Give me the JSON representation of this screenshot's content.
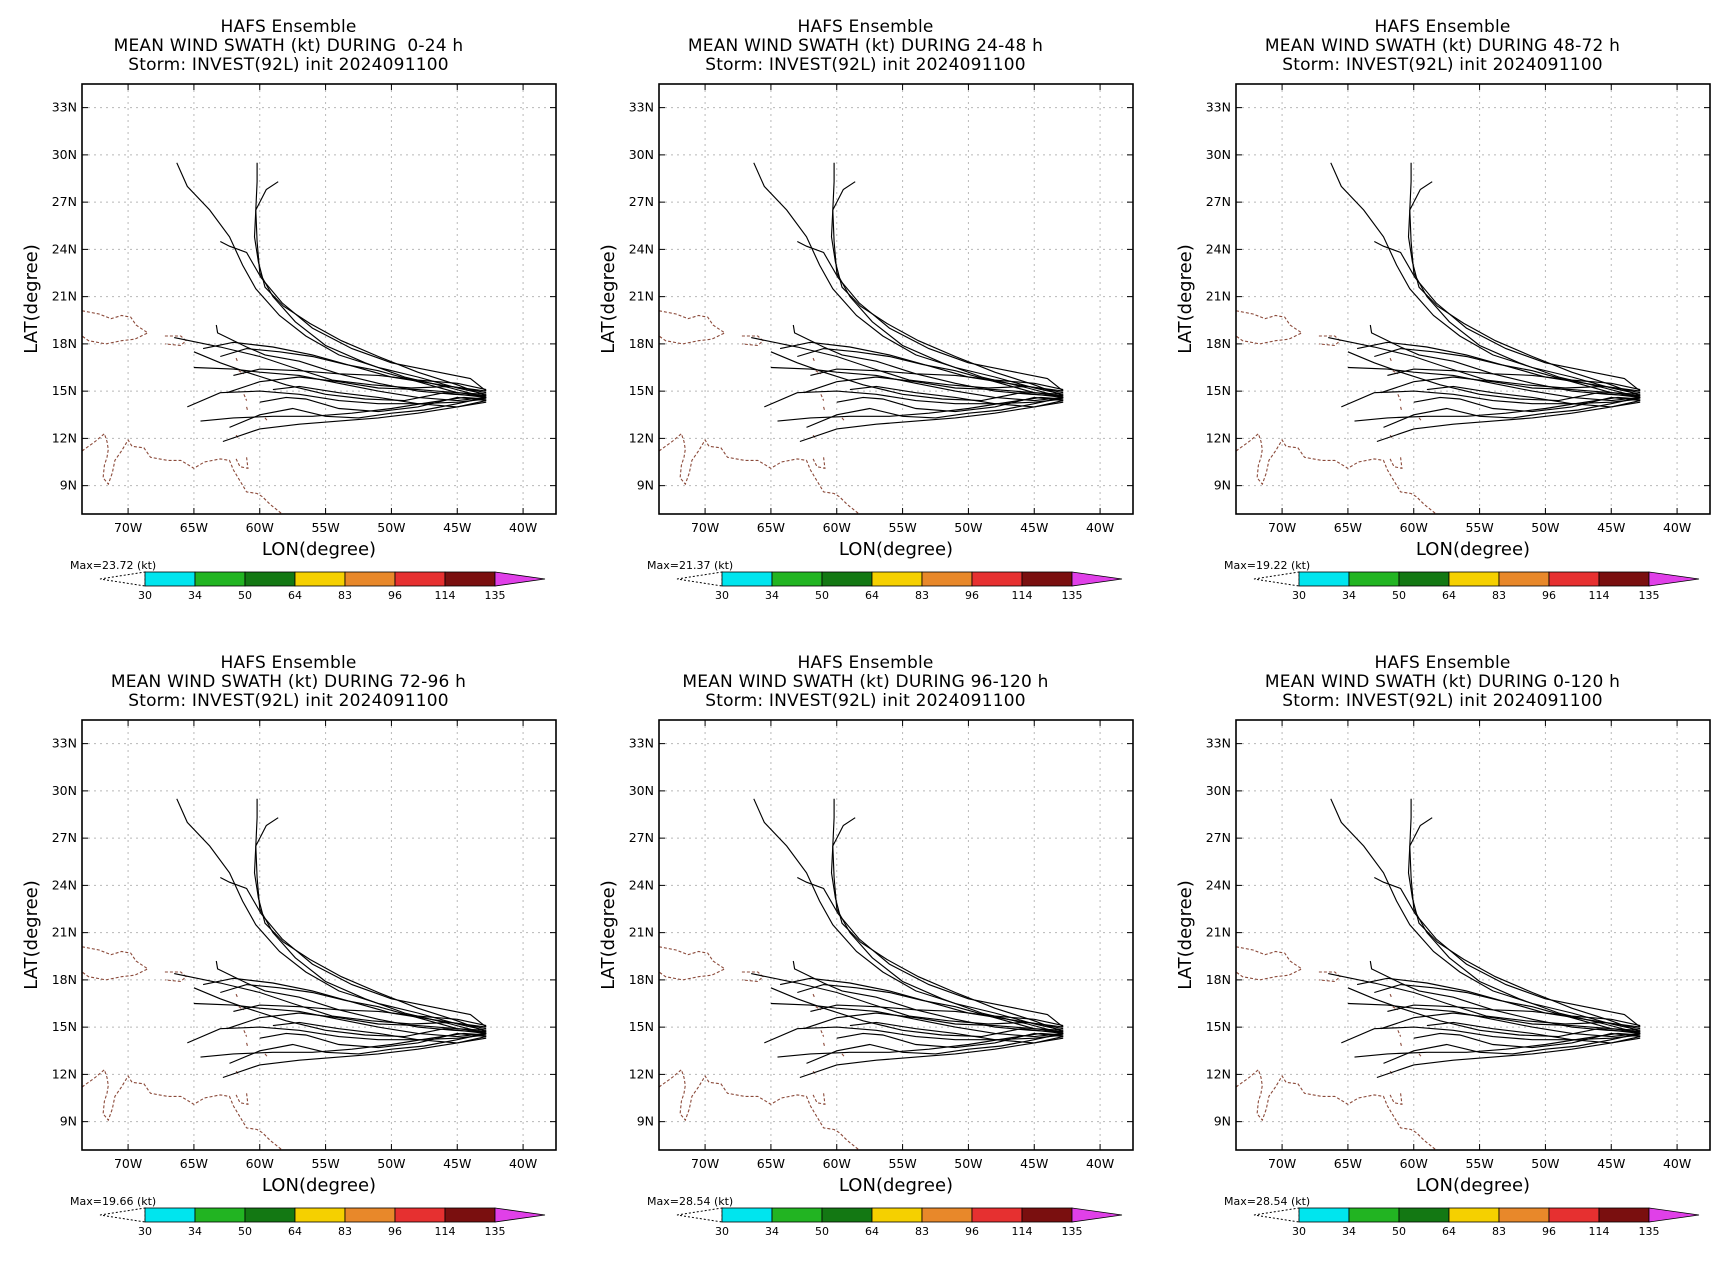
{
  "common": {
    "title_line1": "HAFS Ensemble",
    "title_line3": "Storm: INVEST(92L) init 2024091100",
    "xlabel": "LON(degree)",
    "ylabel": "LAT(degree)",
    "lat_ticks": [
      "33N",
      "30N",
      "27N",
      "24N",
      "21N",
      "18N",
      "15N",
      "12N",
      "9N"
    ],
    "lon_ticks": [
      "70W",
      "65W",
      "60W",
      "55W",
      "50W",
      "45W",
      "40W"
    ],
    "colorbar": {
      "thresholds": [
        "30",
        "34",
        "50",
        "64",
        "83",
        "96",
        "114",
        "135"
      ],
      "colors": [
        "#00e5ee",
        "#22b422",
        "#137813",
        "#f5d000",
        "#e8882a",
        "#e63030",
        "#7a0f0f",
        "#e040e8"
      ]
    }
  },
  "panels": [
    {
      "title_line2": "MEAN WIND SWATH (kt) DURING  0-24 h",
      "max_label": "Max=23.72 (kt)"
    },
    {
      "title_line2": "MEAN WIND SWATH (kt) DURING 24-48 h",
      "max_label": "Max=21.37 (kt)"
    },
    {
      "title_line2": "MEAN WIND SWATH (kt) DURING 48-72 h",
      "max_label": "Max=19.22 (kt)"
    },
    {
      "title_line2": "MEAN WIND SWATH (kt) DURING 72-96 h",
      "max_label": "Max=19.66 (kt)"
    },
    {
      "title_line2": "MEAN WIND SWATH (kt) DURING 96-120 h",
      "max_label": "Max=28.54 (kt)"
    },
    {
      "title_line2": "MEAN WIND SWATH (kt) DURING 0-120 h",
      "max_label": "Max=28.54 (kt)"
    }
  ],
  "map_data": {
    "lon_range": [
      -73.5,
      -37.5
    ],
    "lat_range": [
      7.2,
      34.5
    ],
    "tracks": [
      [
        [
          -42.8,
          14.8
        ],
        [
          -45,
          15.2
        ],
        [
          -48,
          15.9
        ],
        [
          -51,
          16.5
        ],
        [
          -54,
          17.3
        ],
        [
          -56.5,
          18.5
        ],
        [
          -58.5,
          19.8
        ],
        [
          -60.3,
          21.5
        ],
        [
          -61.3,
          23
        ],
        [
          -62.3,
          24.8
        ],
        [
          -63.8,
          26.5
        ],
        [
          -65.5,
          28
        ],
        [
          -66.3,
          29.5
        ]
      ],
      [
        [
          -42.8,
          14.6
        ],
        [
          -45.5,
          15.2
        ],
        [
          -49,
          15.9
        ],
        [
          -52,
          16.8
        ],
        [
          -55,
          17.9
        ],
        [
          -57.3,
          19.4
        ],
        [
          -59,
          21
        ],
        [
          -60,
          22.5
        ],
        [
          -60.2,
          24.5
        ],
        [
          -60.3,
          26.5
        ],
        [
          -60.2,
          28.3
        ],
        [
          -60.2,
          29.5
        ]
      ],
      [
        [
          -42.8,
          14.7
        ],
        [
          -45,
          15.4
        ],
        [
          -48,
          16.2
        ],
        [
          -51,
          17.2
        ],
        [
          -53.8,
          18.2
        ],
        [
          -56.2,
          19.3
        ],
        [
          -58.2,
          20.4
        ],
        [
          -59.6,
          21.6
        ],
        [
          -60.1,
          23.2
        ],
        [
          -60.4,
          24.8
        ],
        [
          -60.3,
          26.5
        ],
        [
          -59.5,
          27.8
        ],
        [
          -58.6,
          28.3
        ]
      ],
      [
        [
          -42.8,
          15.0
        ],
        [
          -44,
          15.8
        ],
        [
          -47,
          16.3
        ],
        [
          -50,
          16.8
        ],
        [
          -53,
          17.7
        ],
        [
          -56,
          19.0
        ],
        [
          -58.3,
          20.6
        ],
        [
          -59.9,
          22.2
        ],
        [
          -61,
          23.8
        ],
        [
          -62.3,
          24.2
        ],
        [
          -63,
          24.5
        ]
      ],
      [
        [
          -42.8,
          14.9
        ],
        [
          -44,
          15.1
        ],
        [
          -47,
          15.5
        ],
        [
          -50,
          15.9
        ],
        [
          -53,
          16.6
        ],
        [
          -56,
          17.3
        ],
        [
          -59,
          17.8
        ],
        [
          -62,
          18.1
        ],
        [
          -64.3,
          17.7
        ]
      ],
      [
        [
          -42.8,
          14.5
        ],
        [
          -45,
          14.3
        ],
        [
          -48,
          14.2
        ],
        [
          -51,
          14.2
        ],
        [
          -54,
          14.4
        ],
        [
          -57,
          14.8
        ],
        [
          -60,
          15.0
        ],
        [
          -63,
          14.9
        ],
        [
          -65.5,
          14.0
        ]
      ],
      [
        [
          -42.8,
          14.4
        ],
        [
          -45,
          14.0
        ],
        [
          -48,
          13.6
        ],
        [
          -51,
          13.3
        ],
        [
          -54,
          13.1
        ],
        [
          -57,
          12.9
        ],
        [
          -60,
          12.6
        ],
        [
          -62.8,
          11.8
        ]
      ],
      [
        [
          -42.8,
          14.6
        ],
        [
          -45,
          14.4
        ],
        [
          -48,
          14.6
        ],
        [
          -51,
          15.0
        ],
        [
          -54,
          15.5
        ],
        [
          -57,
          16.0
        ],
        [
          -60,
          16.2
        ],
        [
          -62,
          16.4
        ],
        [
          -65,
          16.5
        ]
      ],
      [
        [
          -42.8,
          14.7
        ],
        [
          -45.3,
          14.8
        ],
        [
          -48,
          15.0
        ],
        [
          -51,
          15.5
        ],
        [
          -54,
          16.1
        ],
        [
          -57,
          16.9
        ],
        [
          -59.6,
          17.3
        ],
        [
          -61,
          17.8
        ],
        [
          -63.2,
          18.7
        ],
        [
          -63.3,
          19.2
        ]
      ],
      [
        [
          -42.8,
          14.5
        ],
        [
          -44.5,
          14.6
        ],
        [
          -47,
          14.3
        ],
        [
          -50,
          13.9
        ],
        [
          -53,
          13.6
        ],
        [
          -56,
          13.4
        ],
        [
          -59,
          13.4
        ],
        [
          -62,
          13.3
        ],
        [
          -64.5,
          13.1
        ]
      ],
      [
        [
          -42.8,
          14.8
        ],
        [
          -45,
          14.9
        ],
        [
          -48,
          15.1
        ],
        [
          -51,
          15.2
        ],
        [
          -54,
          15.6
        ],
        [
          -57,
          15.9
        ],
        [
          -60,
          15.6
        ],
        [
          -62.5,
          14.9
        ]
      ],
      [
        [
          -42.8,
          14.4
        ],
        [
          -45,
          14.6
        ],
        [
          -48,
          14.0
        ],
        [
          -51,
          13.7
        ],
        [
          -54,
          13.9
        ],
        [
          -56.5,
          14.5
        ],
        [
          -58,
          14.6
        ],
        [
          -60,
          14.3
        ]
      ],
      [
        [
          -42.8,
          14.7
        ],
        [
          -45,
          14.9
        ],
        [
          -48,
          15.6
        ],
        [
          -51,
          16.3
        ],
        [
          -53.5,
          16.7
        ],
        [
          -56,
          17.2
        ],
        [
          -58.5,
          17.5
        ],
        [
          -61,
          17.7
        ],
        [
          -63,
          17.2
        ]
      ],
      [
        [
          -42.8,
          14.6
        ],
        [
          -45,
          14.2
        ],
        [
          -47.5,
          13.8
        ],
        [
          -50,
          13.6
        ],
        [
          -52.5,
          13.3
        ],
        [
          -55,
          13.4
        ],
        [
          -57.5,
          13.9
        ],
        [
          -60,
          13.5
        ],
        [
          -62.3,
          12.7
        ]
      ],
      [
        [
          -42.8,
          15.1
        ],
        [
          -45,
          15.5
        ],
        [
          -48,
          15.7
        ],
        [
          -51,
          16.0
        ],
        [
          -54,
          16.1
        ],
        [
          -57,
          16.3
        ],
        [
          -60,
          16.4
        ],
        [
          -62,
          16.0
        ]
      ],
      [
        [
          -42.8,
          14.3
        ],
        [
          -45,
          14.0
        ],
        [
          -48,
          14.2
        ],
        [
          -51,
          14.6
        ],
        [
          -54,
          14.9
        ],
        [
          -57,
          15.3
        ],
        [
          -59,
          15.1
        ]
      ],
      [
        [
          -42.8,
          14.6
        ],
        [
          -46,
          14.9
        ],
        [
          -49,
          14.4
        ],
        [
          -52,
          14.5
        ],
        [
          -55,
          14.8
        ],
        [
          -58,
          15.4
        ],
        [
          -61,
          16.2
        ],
        [
          -63,
          16.8
        ],
        [
          -65,
          17.5
        ]
      ],
      [
        [
          -42.8,
          15.0
        ],
        [
          -45.5,
          15.3
        ],
        [
          -48.5,
          15.2
        ],
        [
          -51.5,
          15.4
        ],
        [
          -54.5,
          15.7
        ],
        [
          -57.5,
          16.5
        ],
        [
          -60,
          17.2
        ],
        [
          -63,
          17.8
        ],
        [
          -66.5,
          18.4
        ]
      ]
    ],
    "coast": [
      [
        [
          -73.5,
          20.1
        ],
        [
          -72.2,
          19.9
        ],
        [
          -71.3,
          19.6
        ],
        [
          -70.5,
          19.8
        ],
        [
          -69.8,
          19.7
        ],
        [
          -69.4,
          19.2
        ],
        [
          -68.5,
          18.7
        ],
        [
          -69.5,
          18.3
        ],
        [
          -70.5,
          18.2
        ],
        [
          -71.7,
          18.0
        ],
        [
          -73,
          18.2
        ],
        [
          -73.5,
          18.5
        ]
      ],
      [
        [
          -67.2,
          18.5
        ],
        [
          -66,
          18.5
        ],
        [
          -65.6,
          18.2
        ],
        [
          -66,
          17.9
        ],
        [
          -67.2,
          18.0
        ]
      ],
      [
        [
          -61.8,
          17.1
        ],
        [
          -61.7,
          16.9
        ]
      ],
      [
        [
          -61.6,
          16.3
        ],
        [
          -61.2,
          16.1
        ]
      ],
      [
        [
          -61.2,
          14.8
        ],
        [
          -61.0,
          14.4
        ]
      ],
      [
        [
          -61.0,
          14.0
        ],
        [
          -60.9,
          13.7
        ]
      ],
      [
        [
          -59.6,
          13.3
        ],
        [
          -59.4,
          13.1
        ]
      ],
      [
        [
          -61.8,
          12.2
        ],
        [
          -61.6,
          12.0
        ]
      ],
      [
        [
          -61.0,
          10.8
        ],
        [
          -60.9,
          10.1
        ],
        [
          -61.5,
          10.2
        ],
        [
          -61.8,
          10.7
        ]
      ],
      [
        [
          -73.5,
          11.2
        ],
        [
          -72.5,
          11.8
        ],
        [
          -71.8,
          12.3
        ],
        [
          -71.6,
          11.8
        ],
        [
          -71.5,
          11.3
        ],
        [
          -71.6,
          10.8
        ],
        [
          -71.8,
          10.3
        ],
        [
          -71.9,
          9.5
        ],
        [
          -71.5,
          9.1
        ],
        [
          -71.2,
          9.8
        ],
        [
          -71.0,
          10.6
        ],
        [
          -70.5,
          11.2
        ],
        [
          -70,
          11.9
        ],
        [
          -69.7,
          11.5
        ],
        [
          -68.8,
          11.4
        ],
        [
          -68.3,
          10.8
        ],
        [
          -67,
          10.6
        ],
        [
          -66,
          10.6
        ],
        [
          -65,
          10.1
        ],
        [
          -64.2,
          10.5
        ],
        [
          -63,
          10.7
        ],
        [
          -62.3,
          10.6
        ],
        [
          -62,
          10.0
        ],
        [
          -61,
          8.6
        ],
        [
          -60.2,
          8.5
        ],
        [
          -59.8,
          8.3
        ],
        [
          -59.2,
          7.8
        ],
        [
          -58.6,
          7.4
        ],
        [
          -58.3,
          7.2
        ]
      ]
    ]
  }
}
